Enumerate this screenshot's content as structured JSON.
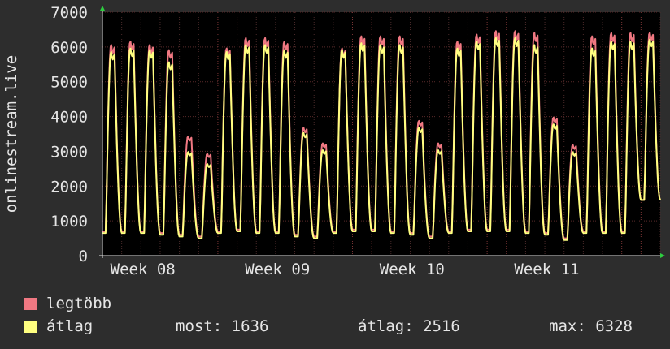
{
  "chart_data": {
    "type": "line",
    "ylabel": "onlinestream.live",
    "ylim": [
      0,
      7000
    ],
    "y_ticks": [
      0,
      1000,
      2000,
      3000,
      4000,
      5000,
      6000,
      7000
    ],
    "x_ticks": [
      "Week 08",
      "Week 09",
      "Week 10",
      "Week 11"
    ],
    "grid": true,
    "days": 29,
    "series": [
      {
        "name": "legtöbb",
        "color": "#f07882",
        "daily_peak": [
          6100,
          6200,
          6100,
          5950,
          3450,
          2950,
          6000,
          6300,
          6300,
          6200,
          3700,
          3250,
          6000,
          6350,
          6350,
          6350,
          3900,
          3250,
          6200,
          6400,
          6500,
          6500,
          6450,
          4000,
          3200,
          6350,
          6450,
          6450,
          6450
        ],
        "daily_min": [
          700,
          700,
          700,
          650,
          600,
          550,
          700,
          750,
          700,
          700,
          600,
          550,
          700,
          750,
          750,
          700,
          650,
          550,
          700,
          750,
          750,
          750,
          700,
          650,
          500,
          700,
          700,
          700,
          1600
        ]
      },
      {
        "name": "átlag",
        "color": "#ffff80",
        "daily_peak": [
          5900,
          6000,
          5950,
          5600,
          3000,
          2650,
          5900,
          6100,
          6100,
          5950,
          3550,
          3050,
          5950,
          6150,
          6100,
          6100,
          3700,
          3050,
          6000,
          6200,
          6300,
          6300,
          6100,
          3800,
          3000,
          6000,
          6200,
          6200,
          6250
        ],
        "daily_min": [
          650,
          650,
          650,
          600,
          550,
          500,
          650,
          700,
          650,
          650,
          550,
          500,
          650,
          700,
          700,
          650,
          600,
          500,
          650,
          700,
          700,
          700,
          650,
          600,
          450,
          650,
          650,
          650,
          1600
        ]
      }
    ]
  },
  "legend": {
    "max_label": "legtöbb",
    "avg_label": "átlag",
    "max_color": "#f07882",
    "avg_color": "#ffff80",
    "now": "most: 1636",
    "average": "átlag: 2516",
    "maximum": "max: 6328"
  }
}
